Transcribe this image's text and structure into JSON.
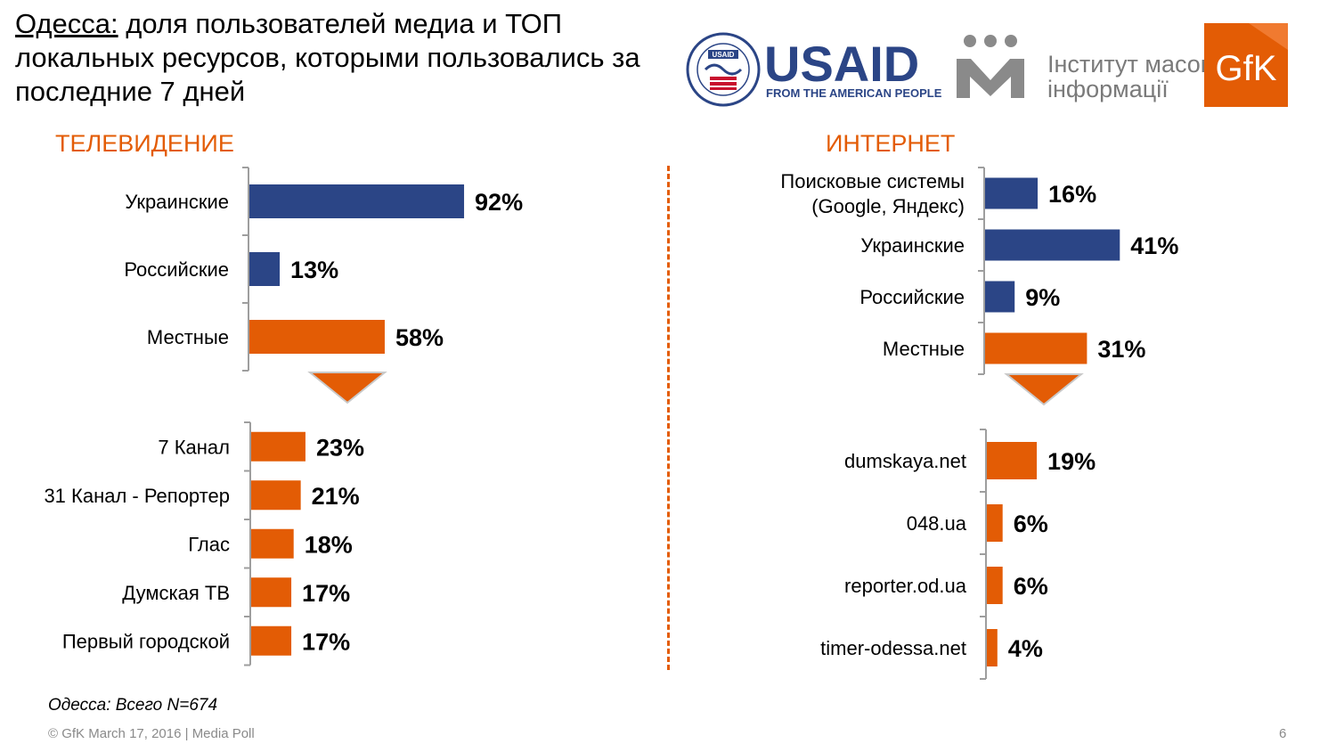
{
  "title": {
    "city": "Одесса:",
    "text": " доля пользователей медиа и ТОП локальных ресурсов, которыми пользовались за последние 7 дней"
  },
  "sections": {
    "tv": "ТЕЛЕВИДЕНИЕ",
    "internet": "ИНТЕРНЕТ"
  },
  "logos": {
    "usaid_seal_text": "USAID",
    "usaid_name": "USAID",
    "usaid_tagline": "FROM THE AMERICAN PEOPLE",
    "imi_line1": "Інститут масової",
    "imi_line2": "інформації",
    "gfk": "GfK"
  },
  "colors": {
    "navy": "#2b4586",
    "orange": "#e35c05",
    "axis": "#9e9e9e"
  },
  "chart_data": [
    {
      "type": "bar",
      "orientation": "horizontal",
      "group": "tv_top",
      "categories": [
        "Украинские",
        "Российские",
        "Местные"
      ],
      "values": [
        92,
        13,
        58
      ],
      "labels": [
        "92%",
        "13%",
        "58%"
      ],
      "colors": [
        "#2b4586",
        "#2b4586",
        "#e35c05"
      ]
    },
    {
      "type": "bar",
      "orientation": "horizontal",
      "group": "tv_local",
      "categories": [
        "7 Канал",
        "31 Канал - Репортер",
        "Глас",
        "Думская ТВ",
        "Первый городской"
      ],
      "values": [
        23,
        21,
        18,
        17,
        17
      ],
      "labels": [
        "23%",
        "21%",
        "18%",
        "17%",
        "17%"
      ],
      "colors": [
        "#e35c05",
        "#e35c05",
        "#e35c05",
        "#e35c05",
        "#e35c05"
      ]
    },
    {
      "type": "bar",
      "orientation": "horizontal",
      "group": "internet_top",
      "categories": [
        "Поисковые системы (Google, Яндекс)",
        "Украинские",
        "Российские",
        "Местные"
      ],
      "category_lines": [
        [
          "Поисковые системы",
          "(Google, Яндекс)"
        ],
        [
          "Украинские"
        ],
        [
          "Российские"
        ],
        [
          "Местные"
        ]
      ],
      "values": [
        16,
        41,
        9,
        31
      ],
      "labels": [
        "16%",
        "41%",
        "9%",
        "31%"
      ],
      "colors": [
        "#2b4586",
        "#2b4586",
        "#2b4586",
        "#e35c05"
      ]
    },
    {
      "type": "bar",
      "orientation": "horizontal",
      "group": "internet_local",
      "categories": [
        "dumskaya.net",
        "048.ua",
        "reporter.od.ua",
        "timer-odessa.net"
      ],
      "values": [
        19,
        6,
        6,
        4
      ],
      "labels": [
        "19%",
        "6%",
        "6%",
        "4%"
      ],
      "colors": [
        "#e35c05",
        "#e35c05",
        "#e35c05",
        "#e35c05"
      ]
    }
  ],
  "footnote": "Одесса: Всего N=674",
  "footer": "© GfK March 17, 2016 | Media Poll",
  "page_number": "6"
}
